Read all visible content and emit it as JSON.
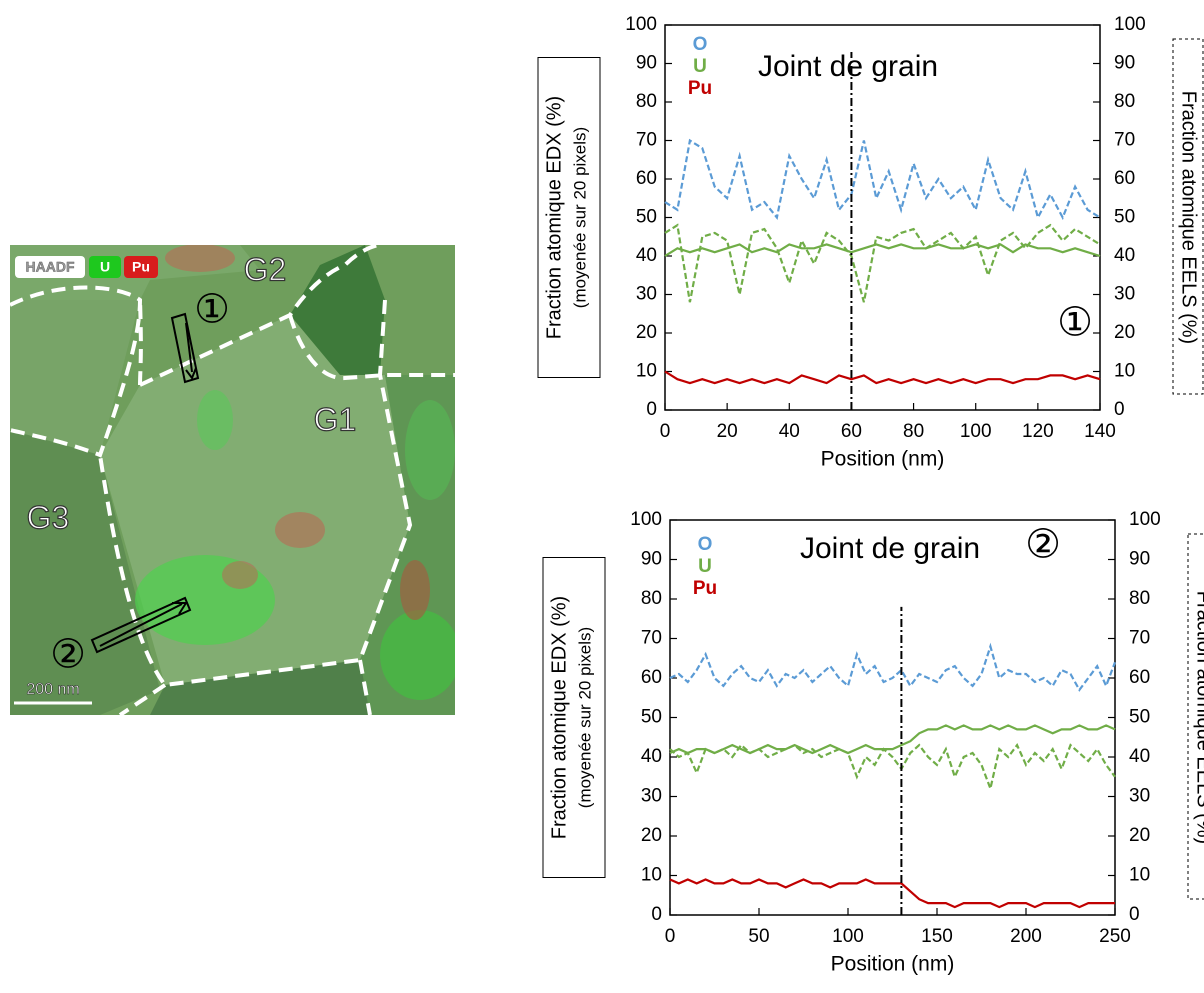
{
  "image": {
    "legend": [
      "HAADF",
      "U",
      "Pu"
    ],
    "grains": [
      "G1",
      "G2",
      "G3"
    ],
    "markers": [
      "①",
      "②"
    ],
    "scale_bar": "200 nm"
  },
  "chart_data": [
    {
      "type": "line",
      "title": "Joint de grain",
      "label": "①",
      "annotation": {
        "text": "Joint de grain",
        "x": 60
      },
      "xlabel": "Position (nm)",
      "ylabel": [
        "Fraction atomique EDX (%)",
        "(moyenée sur 20 pixels)"
      ],
      "y2label": "Fraction atomique EELS (%)",
      "x": [
        0,
        4,
        8,
        12,
        16,
        20,
        24,
        28,
        32,
        36,
        40,
        44,
        48,
        52,
        56,
        60,
        64,
        68,
        72,
        76,
        80,
        84,
        88,
        92,
        96,
        100,
        104,
        108,
        112,
        116,
        120,
        124,
        128,
        132,
        136,
        140
      ],
      "series": [
        {
          "name": "O",
          "color": "#5b9bd5",
          "style": "dashed",
          "axis": "y2",
          "values": [
            54,
            52,
            70,
            68,
            58,
            55,
            66,
            52,
            54,
            50,
            66,
            60,
            55,
            65,
            52,
            56,
            70,
            55,
            62,
            52,
            64,
            55,
            60,
            55,
            58,
            52,
            65,
            55,
            52,
            62,
            50,
            56,
            50,
            58,
            52,
            50
          ]
        },
        {
          "name": "U",
          "color": "#70ad47",
          "style": "dashed",
          "axis": "y2",
          "values": [
            46,
            48,
            28,
            45,
            46,
            44,
            30,
            46,
            47,
            42,
            33,
            44,
            38,
            46,
            44,
            40,
            28,
            45,
            44,
            46,
            47,
            42,
            44,
            46,
            42,
            45,
            35,
            44,
            46,
            42,
            46,
            48,
            44,
            47,
            45,
            43
          ]
        },
        {
          "name": "U",
          "color": "#70ad47",
          "style": "solid",
          "values": [
            40,
            42,
            41,
            42,
            41,
            42,
            43,
            41,
            42,
            41,
            43,
            42,
            42,
            43,
            42,
            41,
            42,
            43,
            42,
            43,
            42,
            42,
            43,
            42,
            42,
            43,
            42,
            43,
            41,
            43,
            42,
            42,
            41,
            42,
            41,
            40
          ]
        },
        {
          "name": "Pu",
          "color": "#c00000",
          "style": "solid",
          "values": [
            10,
            8,
            7,
            8,
            7,
            8,
            7,
            8,
            7,
            8,
            7,
            9,
            8,
            7,
            9,
            8,
            9,
            7,
            8,
            7,
            8,
            7,
            8,
            7,
            8,
            7,
            8,
            8,
            7,
            8,
            8,
            9,
            9,
            8,
            9,
            8
          ]
        }
      ],
      "xlim": [
        0,
        140
      ],
      "xticks": [
        0,
        20,
        40,
        60,
        80,
        100,
        120,
        140
      ],
      "ylim": [
        0,
        100
      ],
      "yticks": [
        0,
        10,
        20,
        30,
        40,
        50,
        60,
        70,
        80,
        90,
        100
      ],
      "y2lim": [
        0,
        100
      ],
      "y2ticks": [
        0,
        10,
        20,
        30,
        40,
        50,
        60,
        70,
        80,
        90,
        100
      ]
    },
    {
      "type": "line",
      "title": "Joint de grain",
      "label": "②",
      "annotation": {
        "text": "Joint de grain",
        "x": 130
      },
      "xlabel": "Position (nm)",
      "ylabel": [
        "Fraction atomique EDX (%)",
        "(moyenée sur 20 pixels)"
      ],
      "y2label": "Fraction atomique EELS (%)",
      "x": [
        0,
        5,
        10,
        15,
        20,
        25,
        30,
        35,
        40,
        45,
        50,
        55,
        60,
        65,
        70,
        75,
        80,
        85,
        90,
        95,
        100,
        105,
        110,
        115,
        120,
        125,
        130,
        135,
        140,
        145,
        150,
        155,
        160,
        165,
        170,
        175,
        180,
        185,
        190,
        195,
        200,
        205,
        210,
        215,
        220,
        225,
        230,
        235,
        240,
        245,
        250
      ],
      "series": [
        {
          "name": "O",
          "color": "#5b9bd5",
          "style": "dashed",
          "axis": "y2",
          "values": [
            60,
            61,
            59,
            62,
            66,
            60,
            58,
            61,
            63,
            60,
            59,
            62,
            58,
            61,
            60,
            62,
            59,
            61,
            63,
            60,
            58,
            66,
            61,
            63,
            59,
            60,
            62,
            58,
            61,
            60,
            59,
            62,
            63,
            60,
            58,
            61,
            68,
            60,
            62,
            61,
            61,
            59,
            60,
            58,
            62,
            61,
            57,
            60,
            63,
            58,
            64
          ]
        },
        {
          "name": "U",
          "color": "#70ad47",
          "style": "dashed",
          "axis": "y2",
          "values": [
            42,
            40,
            41,
            36,
            42,
            41,
            42,
            40,
            43,
            41,
            42,
            40,
            41,
            42,
            43,
            41,
            42,
            40,
            41,
            42,
            41,
            35,
            40,
            38,
            42,
            40,
            37,
            41,
            43,
            40,
            38,
            42,
            35,
            40,
            41,
            38,
            32,
            42,
            40,
            43,
            38,
            41,
            39,
            42,
            37,
            43,
            41,
            39,
            42,
            38,
            35
          ]
        },
        {
          "name": "U",
          "color": "#70ad47",
          "style": "solid",
          "values": [
            41,
            42,
            41,
            42,
            42,
            41,
            42,
            43,
            42,
            41,
            42,
            43,
            42,
            42,
            43,
            42,
            41,
            42,
            43,
            42,
            41,
            42,
            43,
            42,
            42,
            42,
            43,
            44,
            46,
            47,
            47,
            48,
            47,
            48,
            47,
            47,
            48,
            47,
            48,
            47,
            47,
            48,
            47,
            46,
            47,
            47,
            48,
            47,
            47,
            48,
            47
          ]
        },
        {
          "name": "Pu",
          "color": "#c00000",
          "style": "solid",
          "values": [
            9,
            8,
            9,
            8,
            9,
            8,
            8,
            9,
            8,
            8,
            9,
            8,
            8,
            7,
            8,
            9,
            8,
            8,
            7,
            8,
            8,
            8,
            9,
            8,
            8,
            8,
            8,
            6,
            4,
            3,
            3,
            3,
            2,
            3,
            3,
            3,
            3,
            2,
            3,
            3,
            3,
            2,
            3,
            3,
            3,
            3,
            2,
            3,
            3,
            3,
            3
          ]
        }
      ],
      "xlim": [
        0,
        250
      ],
      "xticks": [
        0,
        50,
        100,
        150,
        200,
        250
      ],
      "ylim": [
        0,
        100
      ],
      "yticks": [
        0,
        10,
        20,
        30,
        40,
        50,
        60,
        70,
        80,
        90,
        100
      ],
      "y2lim": [
        0,
        100
      ],
      "y2ticks": [
        0,
        10,
        20,
        30,
        40,
        50,
        60,
        70,
        80,
        90,
        100
      ]
    }
  ]
}
